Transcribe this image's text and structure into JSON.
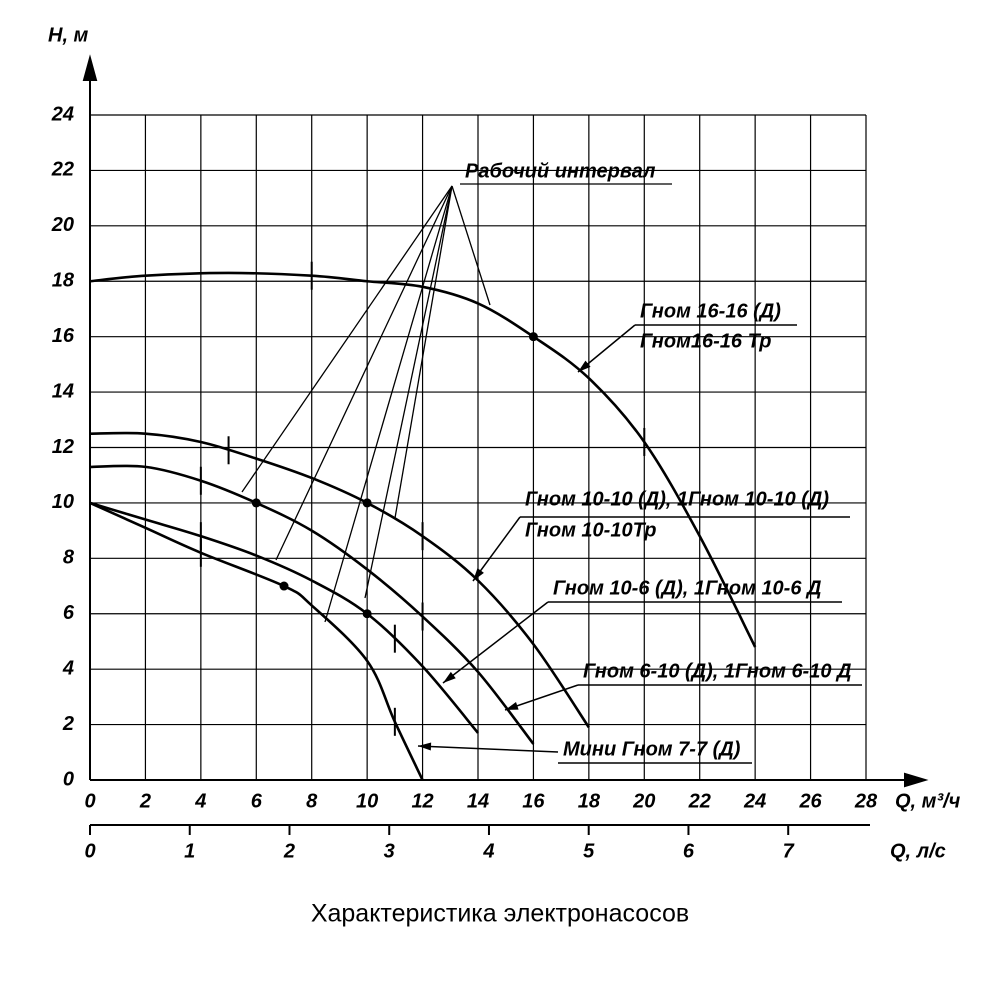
{
  "chart_data": {
    "type": "line",
    "title": "Характеристика электронасосов",
    "y_label": "H, м",
    "x_label": "Q, м³/ч",
    "x2_label": "Q, л/с",
    "xlim": [
      0,
      28
    ],
    "ylim": [
      0,
      24
    ],
    "x2lim": [
      0,
      7.78
    ],
    "xticks": [
      0,
      2,
      4,
      6,
      8,
      10,
      12,
      14,
      16,
      18,
      20,
      22,
      24,
      26,
      28
    ],
    "yticks": [
      0,
      2,
      4,
      6,
      8,
      10,
      12,
      14,
      16,
      18,
      20,
      22,
      24
    ],
    "x2ticks": [
      0,
      1,
      2,
      3,
      4,
      5,
      6,
      7
    ],
    "grid": true,
    "annotation": "Рабочий интервал",
    "series": [
      {
        "name": "Гном 16-16 (Д)",
        "name2": "Гном16-16 Тр",
        "color": "#000000",
        "x": [
          0,
          2,
          5,
          8,
          10,
          12,
          14,
          16,
          18,
          20,
          22,
          24
        ],
        "values": [
          18,
          18.2,
          18.3,
          18.2,
          18,
          17.8,
          17.2,
          16,
          14.5,
          12.2,
          8.8,
          4.8
        ],
        "dots": [
          [
            16,
            16
          ]
        ],
        "interval_marks": [
          [
            8,
            18.2
          ],
          [
            20,
            12.2
          ]
        ]
      },
      {
        "name": "Гном 10-10 (Д), 1Гном 10-10 (Д)",
        "name2": "Гном 10-10Тр",
        "color": "#000000",
        "x": [
          0,
          2,
          4,
          6,
          8,
          10,
          12,
          14,
          16,
          18
        ],
        "values": [
          12.5,
          12.5,
          12.2,
          11.6,
          10.9,
          10,
          8.8,
          7.2,
          4.9,
          1.9
        ],
        "dots": [
          [
            10,
            10
          ]
        ],
        "interval_marks": [
          [
            5,
            11.9
          ],
          [
            12,
            8.8
          ]
        ]
      },
      {
        "name": "Гном 10-6 (Д), 1Гном 10-6 Д",
        "color": "#000000",
        "x": [
          0,
          2,
          4,
          6,
          8,
          10,
          12,
          14
        ],
        "values": [
          10,
          9.4,
          8.8,
          8.1,
          7.2,
          6,
          4.1,
          1.7
        ],
        "dots": [
          [
            10,
            6
          ]
        ],
        "interval_marks": [
          [
            4,
            8.8
          ],
          [
            11,
            5.1
          ]
        ]
      },
      {
        "name": "Гном 6-10 (Д), 1Гном 6-10 Д",
        "color": "#000000",
        "x": [
          0,
          2,
          4,
          6,
          8,
          10,
          12,
          14,
          16
        ],
        "values": [
          11.3,
          11.3,
          10.8,
          10,
          9,
          7.6,
          5.9,
          3.9,
          1.3
        ],
        "dots": [
          [
            6,
            10
          ]
        ],
        "interval_marks": [
          [
            4,
            10.8
          ],
          [
            12,
            5.9
          ]
        ]
      },
      {
        "name": "Мини Гном 7-7 (Д)",
        "color": "#000000",
        "x": [
          0,
          2,
          4,
          7,
          8,
          10,
          11,
          12
        ],
        "values": [
          10,
          9.1,
          8.2,
          7,
          6.3,
          4.3,
          2.1,
          0
        ],
        "dots": [
          [
            7,
            7
          ]
        ],
        "interval_marks": [
          [
            4,
            8.2
          ],
          [
            11,
            2.1
          ]
        ]
      }
    ]
  }
}
